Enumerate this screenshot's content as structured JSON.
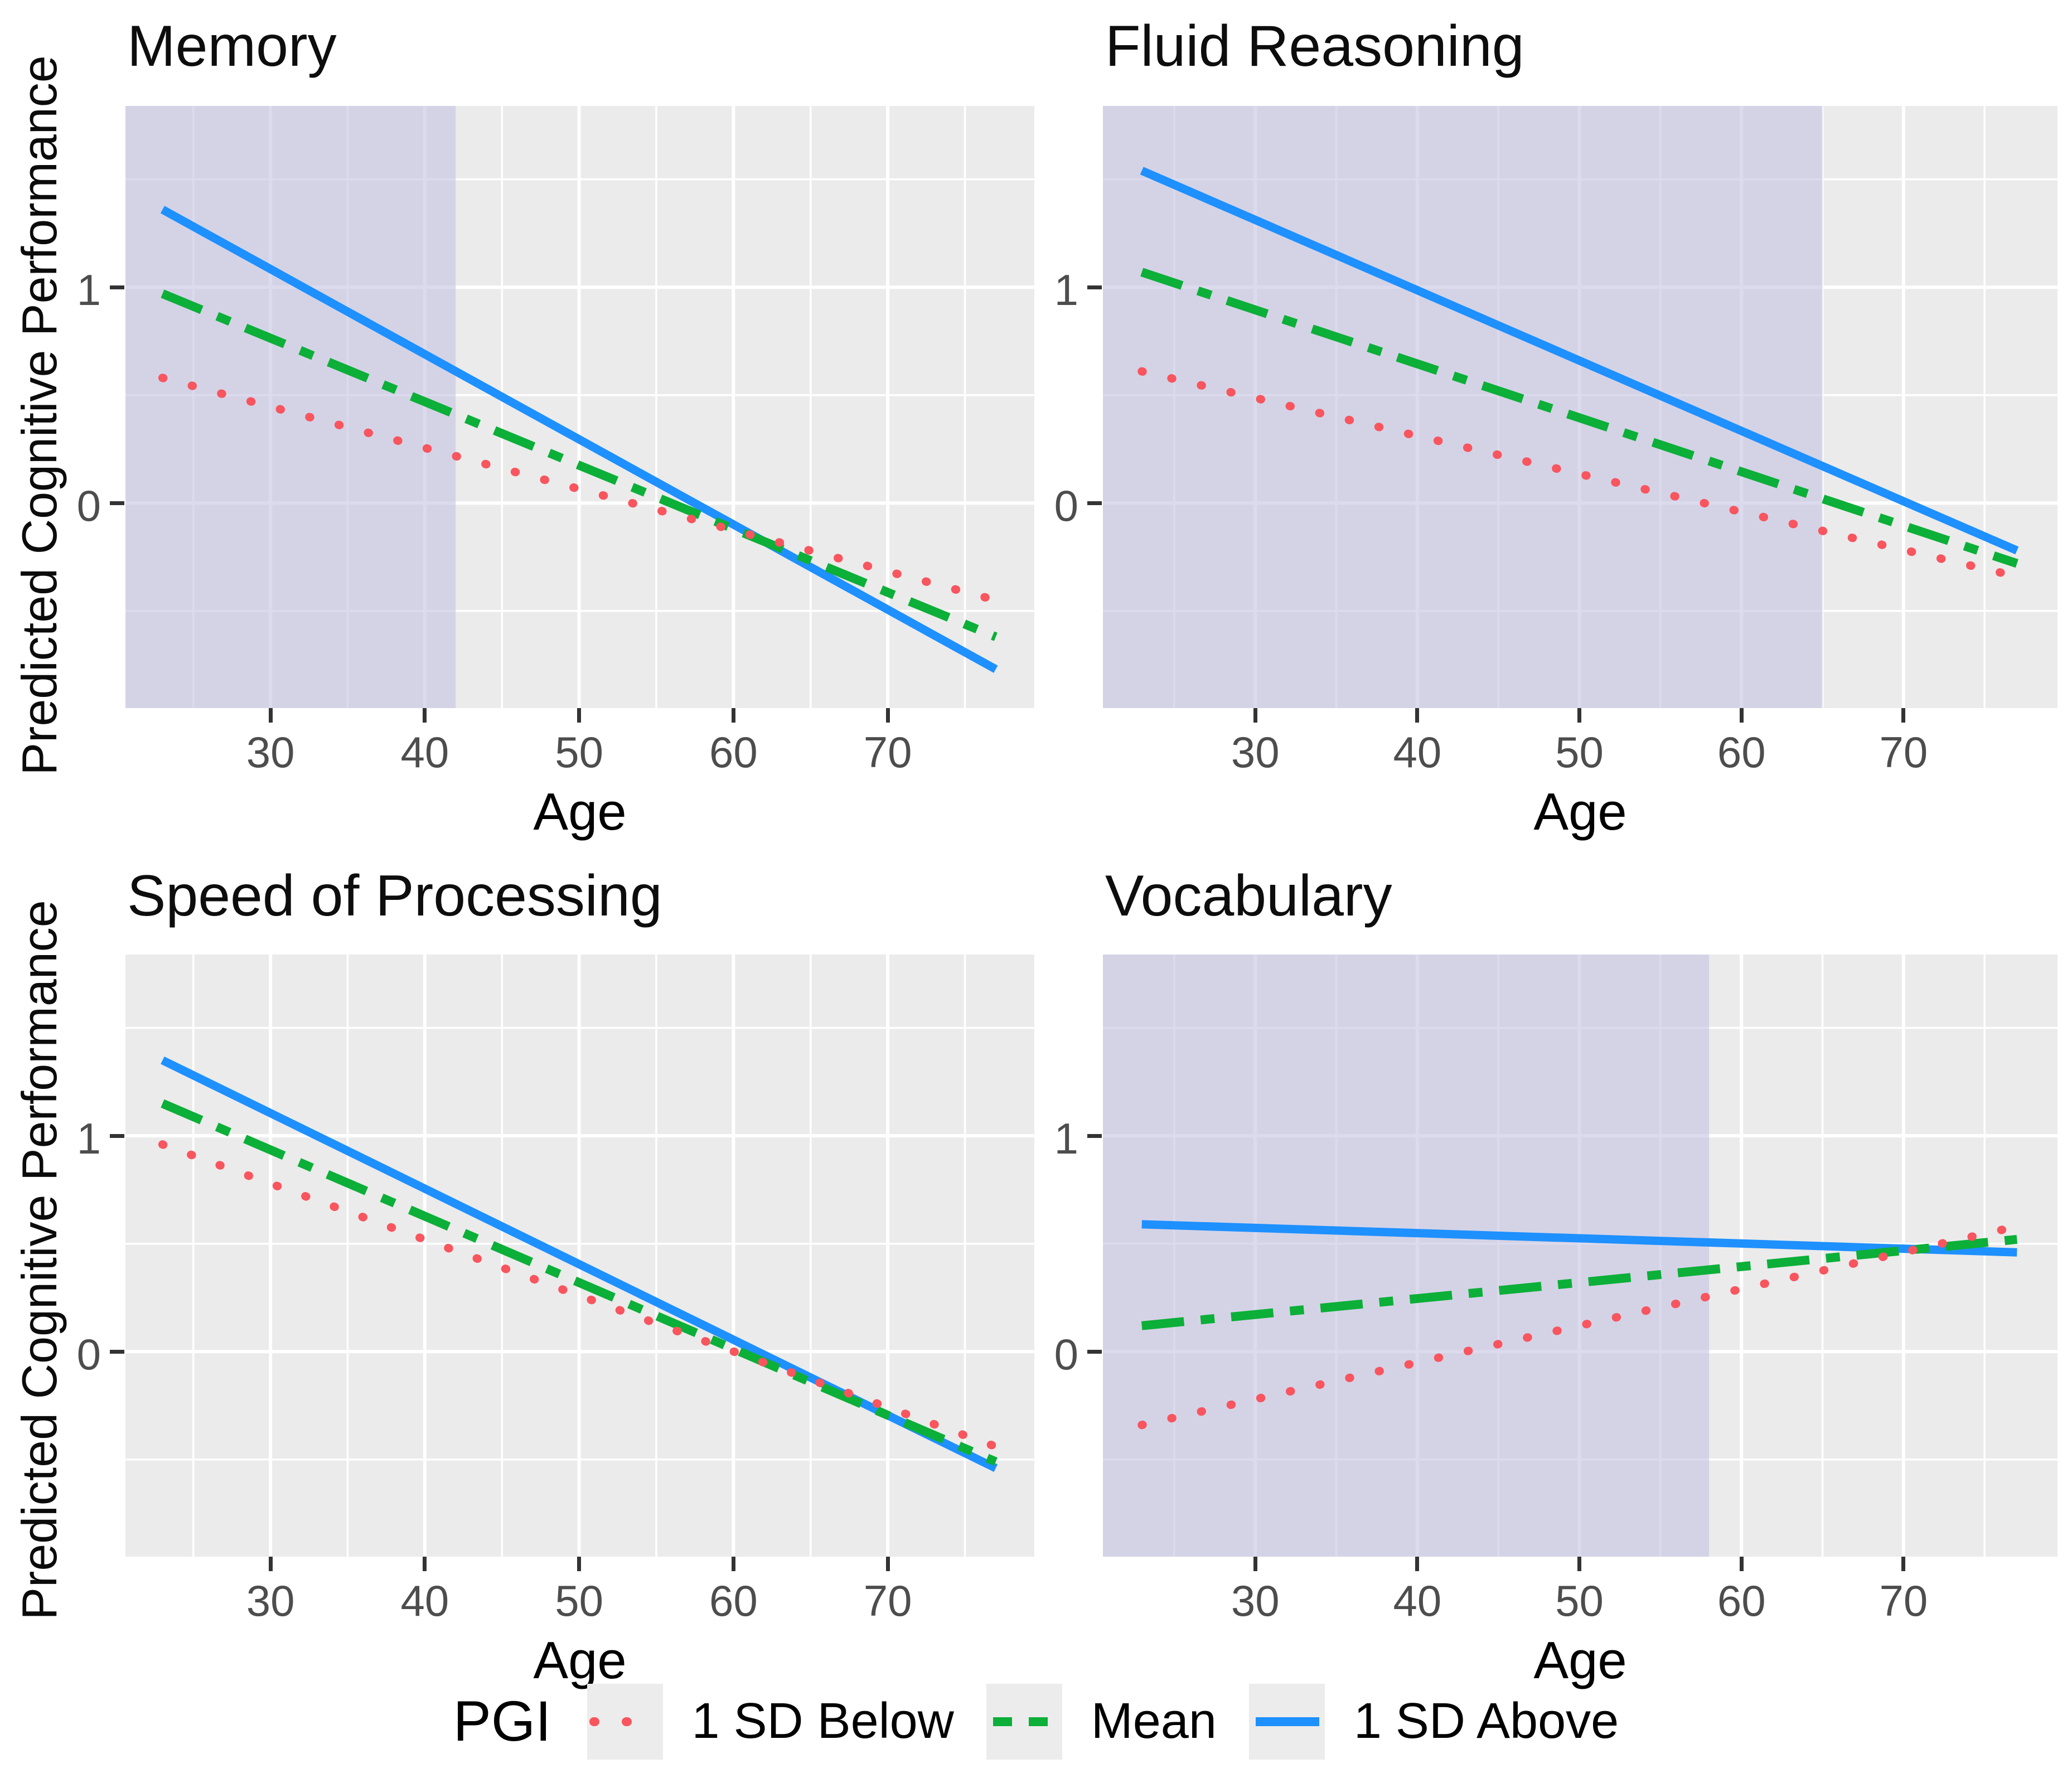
{
  "figure": {
    "y_axis_label": "Predicted Cognitive Performance",
    "x_axis_label": "Age",
    "legend": {
      "title": "PGI",
      "items": [
        {
          "label": "1 SD Below",
          "line_style": "dotted",
          "color": "#F8555E"
        },
        {
          "label": "Mean",
          "line_style": "dash-dot",
          "color": "#0CAF38"
        },
        {
          "label": "1 SD Above",
          "line_style": "solid",
          "color": "#1E90FF"
        }
      ]
    },
    "colors": {
      "panel_background": "#EBEBEB",
      "significant_region_overlay": "#C7C5E3",
      "gridline": "#FFFFFF",
      "tick_label": "#4d4d4d"
    }
  },
  "chart_data": [
    {
      "type": "line",
      "title": "Memory",
      "xlabel": "Age",
      "ylabel": "Predicted Cognitive Performance",
      "xlim": [
        20.6,
        79.5
      ],
      "ylim": [
        -0.95,
        1.84
      ],
      "x_ticks": [
        30,
        40,
        50,
        60,
        70
      ],
      "y_ticks": [
        0,
        1
      ],
      "x": [
        23,
        77
      ],
      "series": [
        {
          "name": "1 SD Above",
          "values": [
            1.36,
            -0.77
          ]
        },
        {
          "name": "Mean",
          "values": [
            0.97,
            -0.62
          ]
        },
        {
          "name": "1 SD Below",
          "values": [
            0.58,
            -0.45
          ]
        }
      ],
      "shaded_region_age_max": 42
    },
    {
      "type": "line",
      "title": "Fluid Reasoning",
      "xlabel": "Age",
      "ylabel": "Predicted Cognitive Performance",
      "xlim": [
        20.6,
        79.5
      ],
      "ylim": [
        -0.95,
        1.84
      ],
      "x_ticks": [
        30,
        40,
        50,
        60,
        70
      ],
      "y_ticks": [
        0,
        1
      ],
      "x": [
        23,
        77
      ],
      "series": [
        {
          "name": "1 SD Above",
          "values": [
            1.54,
            -0.22
          ]
        },
        {
          "name": "Mean",
          "values": [
            1.07,
            -0.28
          ]
        },
        {
          "name": "1 SD Below",
          "values": [
            0.61,
            -0.34
          ]
        }
      ],
      "shaded_region_age_max": 65
    },
    {
      "type": "line",
      "title": "Speed of Processing",
      "xlabel": "Age",
      "ylabel": "Predicted Cognitive Performance",
      "xlim": [
        20.6,
        79.5
      ],
      "ylim": [
        -0.95,
        1.84
      ],
      "x_ticks": [
        30,
        40,
        50,
        60,
        70
      ],
      "y_ticks": [
        0,
        1
      ],
      "x": [
        23,
        77
      ],
      "series": [
        {
          "name": "1 SD Above",
          "values": [
            1.35,
            -0.54
          ]
        },
        {
          "name": "Mean",
          "values": [
            1.15,
            -0.51
          ]
        },
        {
          "name": "1 SD Below",
          "values": [
            0.96,
            -0.44
          ]
        }
      ],
      "shaded_region_age_max": null
    },
    {
      "type": "line",
      "title": "Vocabulary",
      "xlabel": "Age",
      "ylabel": "Predicted Cognitive Performance",
      "xlim": [
        20.6,
        79.5
      ],
      "ylim": [
        -0.95,
        1.84
      ],
      "x_ticks": [
        30,
        40,
        50,
        60,
        70
      ],
      "y_ticks": [
        0,
        1
      ],
      "x": [
        23,
        77
      ],
      "series": [
        {
          "name": "1 SD Above",
          "values": [
            0.59,
            0.46
          ]
        },
        {
          "name": "Mean",
          "values": [
            0.12,
            0.52
          ]
        },
        {
          "name": "1 SD Below",
          "values": [
            -0.34,
            0.58
          ]
        }
      ],
      "shaded_region_age_max": 58
    }
  ]
}
